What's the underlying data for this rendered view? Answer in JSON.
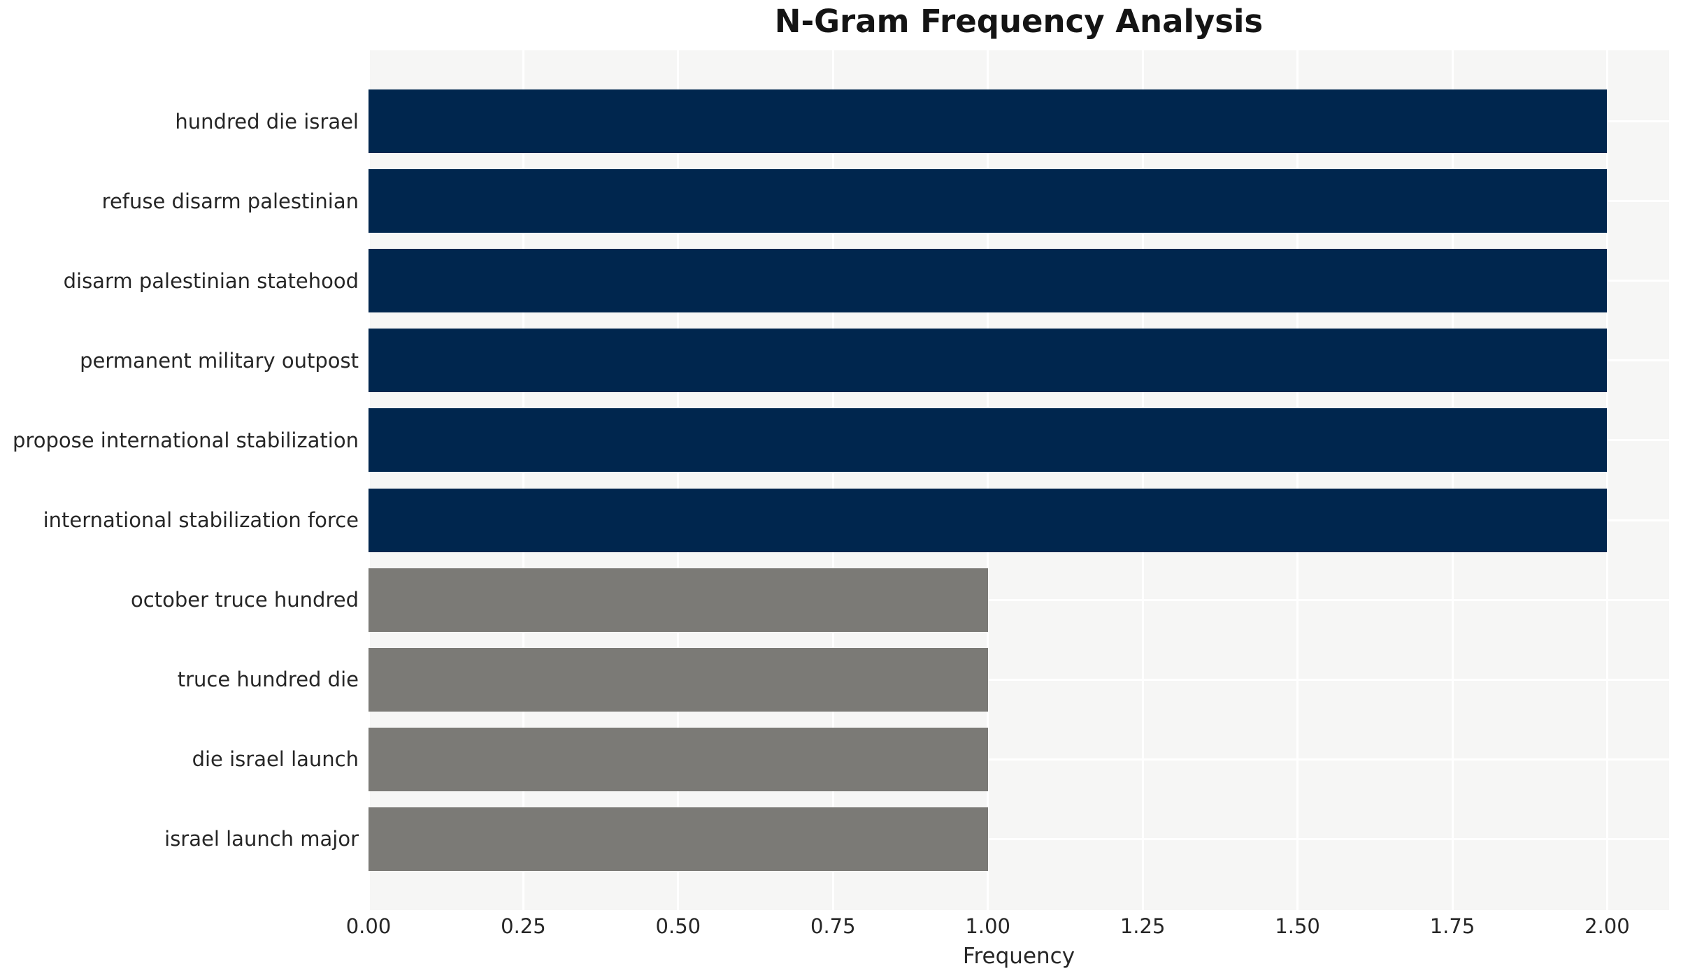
{
  "chart_data": {
    "type": "bar",
    "orientation": "horizontal",
    "title": "N-Gram Frequency Analysis",
    "xlabel": "Frequency",
    "ylabel": "",
    "categories": [
      "hundred die israel",
      "refuse disarm palestinian",
      "disarm palestinian statehood",
      "permanent military outpost",
      "propose international stabilization",
      "international stabilization force",
      "october truce hundred",
      "truce hundred die",
      "die israel launch",
      "israel launch major"
    ],
    "values": [
      2,
      2,
      2,
      2,
      2,
      2,
      1,
      1,
      1,
      1
    ],
    "bar_colors": [
      "#00264e",
      "#00264e",
      "#00264e",
      "#00264e",
      "#00264e",
      "#00264e",
      "#7b7a76",
      "#7b7a76",
      "#7b7a76",
      "#7b7a76"
    ],
    "xlim": [
      0,
      2.1
    ],
    "xticks": [
      0,
      0.25,
      0.5,
      0.75,
      1.0,
      1.25,
      1.5,
      1.75,
      2.0
    ],
    "xtick_labels": [
      "0.00",
      "0.25",
      "0.50",
      "0.75",
      "1.00",
      "1.25",
      "1.50",
      "1.75",
      "2.00"
    ],
    "grid": true,
    "legend_position": "none",
    "colors": {
      "high_freq_bar": "#00264e",
      "low_freq_bar": "#7b7a76",
      "plot_background": "#f6f6f5",
      "gridline": "#ffffff",
      "tick_text": "#262626",
      "title_text": "#141414"
    }
  }
}
